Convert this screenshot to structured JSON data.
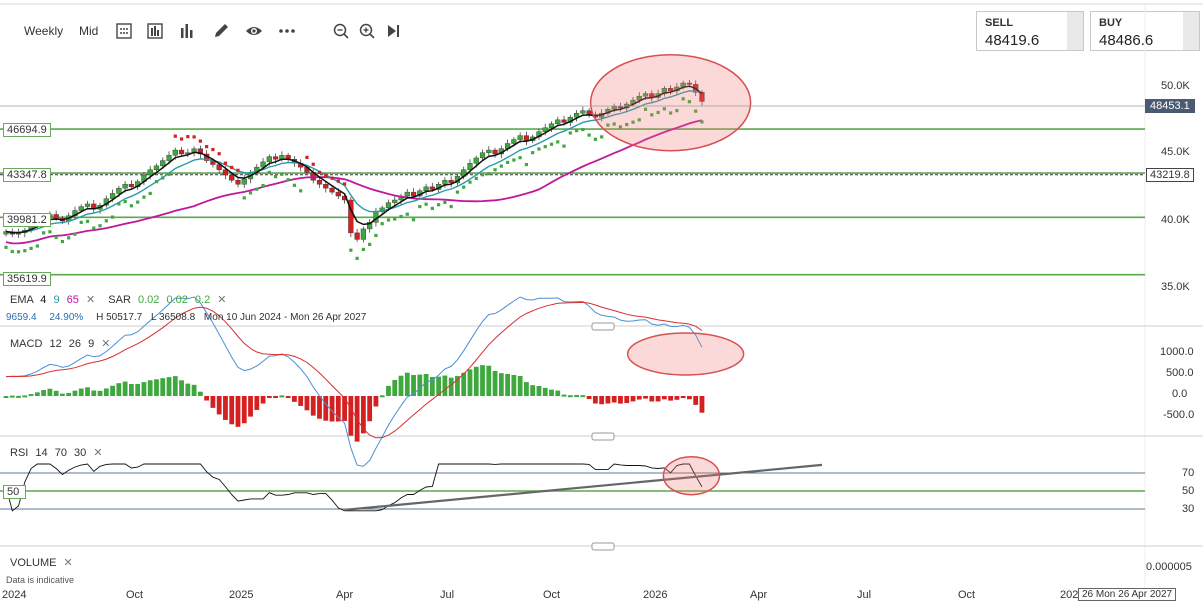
{
  "toolbar": {
    "interval_label": "Weekly",
    "price_type_label": "Mid",
    "icons": [
      "calculator-icon",
      "bar-type-icon",
      "indicator-icon",
      "draw-icon",
      "eye-icon",
      "more-icon",
      "zoom-out-icon",
      "zoom-in-icon",
      "play-icon"
    ]
  },
  "quote": {
    "sell_label": "SELL",
    "sell_value": "48419.6",
    "buy_label": "BUY",
    "buy_value": "48486.6"
  },
  "colors": {
    "up": "#3ea83e",
    "down": "#d42020",
    "ema_fast": "#111111",
    "ema_mid": "#2a9aa8",
    "ema_slow": "#c0179b",
    "sar": "#3ea83e",
    "sar_down": "#d42020",
    "hline": "#5aaa4a",
    "macd_line": "#4a90d9",
    "signal_line": "#d63030",
    "ellipse_fill": "rgba(240,120,120,0.28)",
    "ellipse_stroke": "#d85050",
    "current_price_tag": "#4a5a70"
  },
  "main_panel": {
    "level_labels_left": [
      "46694.9",
      "43347.8",
      "39981.2",
      "35619.9"
    ],
    "level_label_right": "43219.8",
    "current_price": "48453.1",
    "y_ticks": [
      "50.0K",
      "45.0K",
      "40.0K",
      "35.0K"
    ],
    "ema_legend": {
      "name": "EMA",
      "p1": "4",
      "p2": "9",
      "p3": "65"
    },
    "sar_legend": {
      "name": "SAR",
      "p1": "0.02",
      "p2": "0.02",
      "p3": "0.2"
    },
    "stats": {
      "change": "9659.4",
      "change_pct": "24.90%",
      "high": "H 50517.7",
      "low": "L 36508.8",
      "range": "Mon 10 Jun 2024 - Mon 26 Apr 2027"
    }
  },
  "macd_panel": {
    "legend": {
      "name": "MACD",
      "p1": "12",
      "p2": "26",
      "p3": "9"
    },
    "y_ticks": [
      "1000.0",
      "500.0",
      "0.0",
      "-500.0"
    ]
  },
  "rsi_panel": {
    "legend": {
      "name": "RSI",
      "p1": "14",
      "p2": "70",
      "p3": "30"
    },
    "left_label": "50",
    "y_ticks": [
      "70",
      "50",
      "30"
    ]
  },
  "volume_panel": {
    "legend": "VOLUME",
    "note": "Data is indicative",
    "y_tick": "0.000005"
  },
  "x_axis": {
    "labels": [
      "2024",
      "Oct",
      "2025",
      "Apr",
      "Jul",
      "Oct",
      "2026",
      "Apr",
      "Jul",
      "Oct",
      "2027"
    ],
    "cursor_label": "26 Mon 26 Apr 2027"
  },
  "chart_data": {
    "type": "candlestick",
    "interval": "weekly",
    "levels": [
      46694.9,
      43347.8,
      39981.2,
      35619.9
    ],
    "level_right": 43219.8,
    "current_price": 48453.1,
    "ylim": [
      34300,
      51800
    ],
    "closes": [
      38900,
      38700,
      38800,
      39000,
      39300,
      39600,
      40000,
      40200,
      39900,
      39700,
      40100,
      40500,
      40800,
      41000,
      40600,
      40900,
      41400,
      41800,
      42200,
      42500,
      42300,
      42700,
      43200,
      43600,
      43900,
      44300,
      44700,
      45100,
      44800,
      44900,
      45200,
      44800,
      44300,
      44000,
      43600,
      43200,
      42800,
      42500,
      42900,
      43400,
      43800,
      44200,
      44600,
      44400,
      44700,
      44400,
      44100,
      43800,
      43400,
      42800,
      42500,
      42200,
      41900,
      41600,
      41300,
      38800,
      38300,
      39100,
      39600,
      40400,
      40700,
      41100,
      41300,
      41600,
      41900,
      41600,
      42000,
      42300,
      42100,
      42500,
      42800,
      42600,
      43100,
      43600,
      44100,
      44500,
      44900,
      45100,
      44800,
      45200,
      45600,
      45900,
      46200,
      45800,
      46100,
      46500,
      46800,
      47100,
      47400,
      47200,
      47600,
      47900,
      48100,
      47800,
      47600,
      47900,
      48200,
      48400,
      48300,
      48600,
      48900,
      49200,
      49400,
      49100,
      49400,
      49800,
      49600,
      49900,
      50200,
      50100,
      49500,
      48800
    ]
  }
}
